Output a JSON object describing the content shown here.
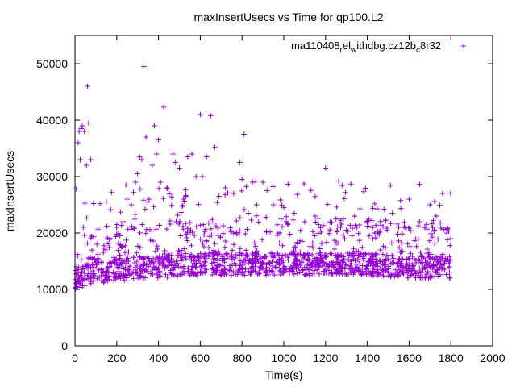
{
  "chart_data": {
    "type": "scatter",
    "title": "maxInsertUsecs vs Time for qp100.L2",
    "xlabel": "Time(s)",
    "ylabel": "maxInsertUsecs",
    "xlim": [
      0,
      2000
    ],
    "ylim": [
      0,
      55000
    ],
    "xticks": [
      0,
      200,
      400,
      600,
      800,
      1000,
      1200,
      1400,
      1600,
      1800,
      2000
    ],
    "yticks": [
      0,
      10000,
      20000,
      30000,
      40000,
      50000
    ],
    "xtick_labels": [
      "0",
      "200",
      "400",
      "600",
      "800",
      "1000",
      "1200",
      "1400",
      "1600",
      "1800",
      "2000"
    ],
    "ytick_labels": [
      "0",
      "10000",
      "20000",
      "30000",
      "40000",
      "50000"
    ],
    "legend_position": "top-right",
    "marker": "plus",
    "color": "#9400d3",
    "series": [
      {
        "name": "ma110408rel_withdbg.cz12bc8r32",
        "legend_parts": {
          "base1": "ma110408",
          "sub1": "r",
          "base2": "el",
          "sub2": "w",
          "base3": "ithdbg.cz12b",
          "sub3": "c",
          "base4": "8r32"
        },
        "notable_points": [
          [
            5,
            27800
          ],
          [
            10,
            10500
          ],
          [
            15,
            36000
          ],
          [
            20,
            38000
          ],
          [
            25,
            33000
          ],
          [
            30,
            38500
          ],
          [
            35,
            39000
          ],
          [
            40,
            21000
          ],
          [
            45,
            38000
          ],
          [
            55,
            32000
          ],
          [
            60,
            46000
          ],
          [
            65,
            39500
          ],
          [
            75,
            33000
          ],
          [
            120,
            25200
          ],
          [
            150,
            25500
          ],
          [
            175,
            27200
          ],
          [
            200,
            21500
          ],
          [
            230,
            22000
          ],
          [
            250,
            26000
          ],
          [
            270,
            25000
          ],
          [
            290,
            29000
          ],
          [
            300,
            30500
          ],
          [
            310,
            33500
          ],
          [
            320,
            33000
          ],
          [
            330,
            49500
          ],
          [
            340,
            37000
          ],
          [
            355,
            26000
          ],
          [
            370,
            32000
          ],
          [
            380,
            39000
          ],
          [
            390,
            34000
          ],
          [
            400,
            36500
          ],
          [
            410,
            29000
          ],
          [
            425,
            42300
          ],
          [
            440,
            28000
          ],
          [
            470,
            34000
          ],
          [
            480,
            32500
          ],
          [
            500,
            31500
          ],
          [
            520,
            26000
          ],
          [
            540,
            33500
          ],
          [
            560,
            34000
          ],
          [
            580,
            30000
          ],
          [
            600,
            41000
          ],
          [
            610,
            30000
          ],
          [
            630,
            33500
          ],
          [
            650,
            40800
          ],
          [
            670,
            35200
          ],
          [
            690,
            26500
          ],
          [
            720,
            28000
          ],
          [
            760,
            27000
          ],
          [
            790,
            32500
          ],
          [
            800,
            29500
          ],
          [
            810,
            37500
          ],
          [
            830,
            23500
          ],
          [
            850,
            29000
          ],
          [
            870,
            25000
          ],
          [
            900,
            29000
          ],
          [
            920,
            27500
          ],
          [
            950,
            25000
          ],
          [
            1000,
            24500
          ],
          [
            1050,
            23500
          ],
          [
            1100,
            22000
          ],
          [
            1150,
            23000
          ],
          [
            1200,
            31500
          ],
          [
            1250,
            22500
          ],
          [
            1300,
            20500
          ],
          [
            1350,
            21000
          ],
          [
            1400,
            22000
          ],
          [
            1450,
            20000
          ],
          [
            1480,
            24200
          ],
          [
            1520,
            23500
          ],
          [
            1550,
            21000
          ],
          [
            1600,
            26000
          ],
          [
            1650,
            22000
          ],
          [
            1700,
            25000
          ],
          [
            1730,
            23000
          ],
          [
            1760,
            27000
          ],
          [
            1780,
            20000
          ],
          [
            1800,
            19000
          ]
        ],
        "baseline": [
          [
            0,
            12000
          ],
          [
            100,
            13000
          ],
          [
            200,
            13500
          ],
          [
            400,
            14000
          ],
          [
            600,
            14500
          ],
          [
            800,
            14500
          ],
          [
            1000,
            14500
          ],
          [
            1200,
            14500
          ],
          [
            1400,
            14500
          ],
          [
            1600,
            14000
          ],
          [
            1800,
            14000
          ]
        ]
      }
    ]
  }
}
